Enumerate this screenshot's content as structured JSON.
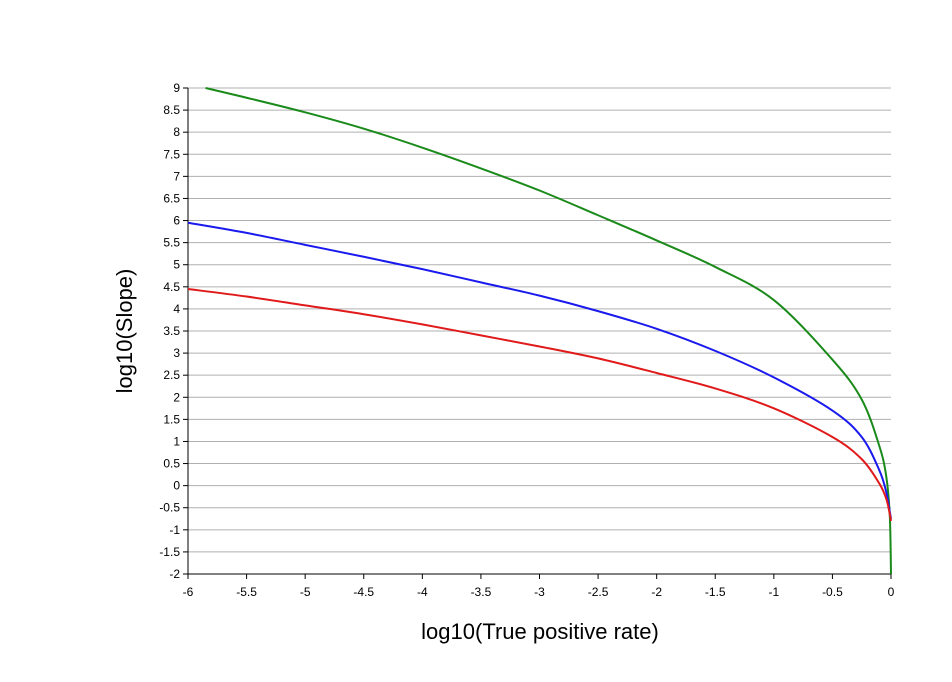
{
  "chart_data": {
    "type": "line",
    "title": "",
    "xlabel": "log10(True positive rate)",
    "ylabel": "log10(Slope)",
    "xlim": [
      -6,
      0
    ],
    "ylim": [
      -2,
      9
    ],
    "grid": "horizontal",
    "legend": "none",
    "xticks": [
      "-6",
      "-5.5",
      "-5",
      "-4.5",
      "-4",
      "-3.5",
      "-3",
      "-2.5",
      "-2",
      "-1.5",
      "-1",
      "-0.5",
      "0"
    ],
    "yticks": [
      "-2",
      "-1.5",
      "-1",
      "-0.5",
      "0",
      "0.5",
      "1",
      "1.5",
      "2",
      "2.5",
      "3",
      "3.5",
      "4",
      "4.5",
      "5",
      "5.5",
      "6",
      "6.5",
      "7",
      "7.5",
      "8",
      "8.5",
      "9"
    ],
    "series": [
      {
        "color": "#1a8a1a",
        "x": [
          -5.85,
          -5.5,
          -5,
          -4.5,
          -4,
          -3.5,
          -3,
          -2.5,
          -2,
          -1.5,
          -1,
          -0.5,
          -0.25,
          -0.1,
          -0.04,
          -0.01,
          0
        ],
        "y": [
          9.0,
          8.78,
          8.45,
          8.08,
          7.65,
          7.18,
          6.68,
          6.12,
          5.55,
          4.95,
          4.2,
          2.85,
          1.95,
          0.9,
          0.2,
          -0.7,
          -2.0
        ]
      },
      {
        "color": "#1a1aee",
        "x": [
          -6,
          -5.5,
          -5,
          -4.5,
          -4,
          -3.5,
          -3,
          -2.5,
          -2,
          -1.5,
          -1,
          -0.5,
          -0.25,
          -0.1,
          -0.04,
          -0.01,
          0
        ],
        "y": [
          5.95,
          5.72,
          5.45,
          5.18,
          4.9,
          4.6,
          4.3,
          3.95,
          3.55,
          3.05,
          2.45,
          1.7,
          1.1,
          0.35,
          -0.15,
          -0.6,
          -0.75
        ]
      },
      {
        "color": "#e01a1a",
        "x": [
          -6,
          -5.5,
          -5,
          -4.5,
          -4,
          -3.5,
          -3,
          -2.5,
          -2,
          -1.5,
          -1,
          -0.5,
          -0.25,
          -0.1,
          -0.04,
          -0.01,
          0
        ],
        "y": [
          4.45,
          4.28,
          4.08,
          3.88,
          3.65,
          3.4,
          3.15,
          2.88,
          2.55,
          2.2,
          1.75,
          1.1,
          0.6,
          0.05,
          -0.3,
          -0.65,
          -0.8
        ]
      }
    ]
  }
}
